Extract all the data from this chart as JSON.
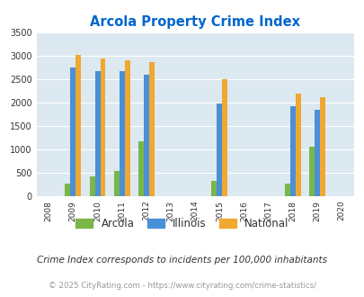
{
  "title": "Arcola Property Crime Index",
  "all_years": [
    2008,
    2009,
    2010,
    2011,
    2012,
    2013,
    2014,
    2015,
    2016,
    2017,
    2018,
    2019,
    2020
  ],
  "data_years": [
    2009,
    2010,
    2011,
    2012,
    2015,
    2018,
    2019
  ],
  "arcola": [
    270,
    430,
    535,
    1180,
    330,
    265,
    1060
  ],
  "illinois": [
    2750,
    2670,
    2670,
    2590,
    1990,
    1930,
    1840
  ],
  "national": [
    3030,
    2950,
    2910,
    2860,
    2500,
    2200,
    2110
  ],
  "arcola_color": "#7ab648",
  "illinois_color": "#4a90d9",
  "national_color": "#f0a830",
  "bg_color": "#dce9f0",
  "title_color": "#0066cc",
  "ylim": [
    0,
    3500
  ],
  "yticks": [
    0,
    500,
    1000,
    1500,
    2000,
    2500,
    3000,
    3500
  ],
  "subtitle": "Crime Index corresponds to incidents per 100,000 inhabitants",
  "footer": "© 2025 CityRating.com - https://www.cityrating.com/crime-statistics/",
  "bar_width": 0.22,
  "legend_labels": [
    "Arcola",
    "Illinois",
    "National"
  ]
}
